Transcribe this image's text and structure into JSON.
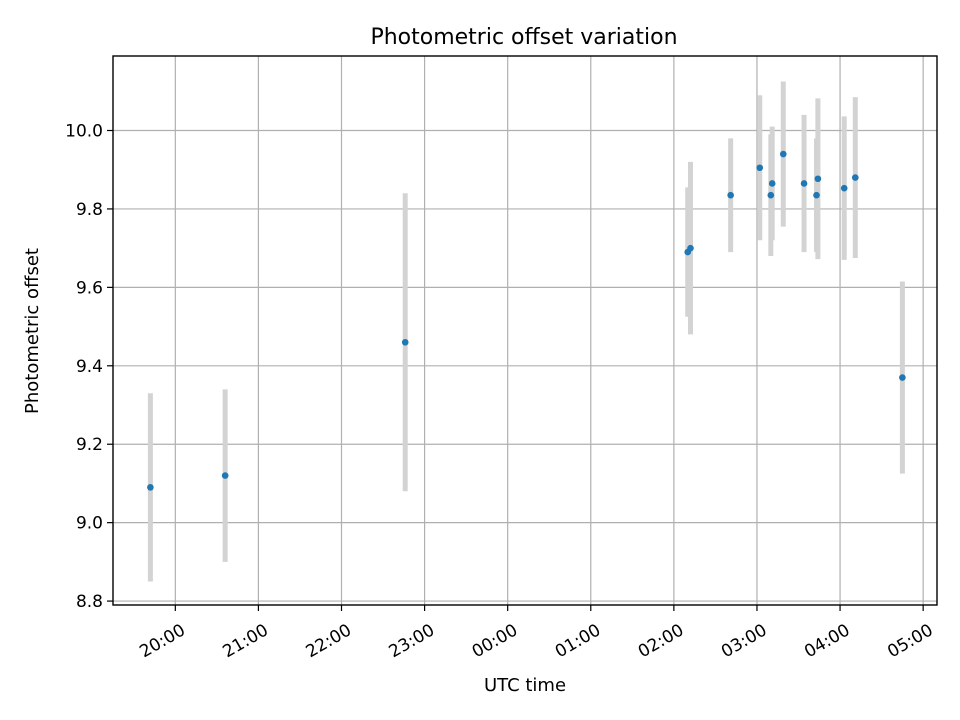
{
  "chart_data": {
    "type": "scatter",
    "title": "Photometric offset variation",
    "xlabel": "UTC time",
    "ylabel": "Photometric offset",
    "ylim": [
      8.79,
      10.19
    ],
    "xlim": [
      "19:15",
      "05:10"
    ],
    "grid": true,
    "x_ticks": [
      "20:00",
      "21:00",
      "22:00",
      "23:00",
      "00:00",
      "01:00",
      "02:00",
      "03:00",
      "04:00",
      "05:00"
    ],
    "y_ticks": [
      8.8,
      9.0,
      9.2,
      9.4,
      9.6,
      9.8,
      10.0
    ],
    "y_tick_labels": [
      "8.8",
      "9.0",
      "9.2",
      "9.4",
      "9.6",
      "9.8",
      "10.0"
    ],
    "point_color": "#1f77b4",
    "errorbar_color": "#d3d3d3",
    "points": [
      {
        "time": "19:42",
        "y": 9.09,
        "err": 0.24
      },
      {
        "time": "20:36",
        "y": 9.12,
        "err": 0.22
      },
      {
        "time": "22:46",
        "y": 9.46,
        "err": 0.38
      },
      {
        "time": "02:10",
        "y": 9.69,
        "err": 0.165
      },
      {
        "time": "02:12",
        "y": 9.7,
        "err": 0.22
      },
      {
        "time": "02:41",
        "y": 9.835,
        "err": 0.145
      },
      {
        "time": "03:02",
        "y": 9.905,
        "err": 0.185
      },
      {
        "time": "03:10",
        "y": 9.835,
        "err": 0.155
      },
      {
        "time": "03:11",
        "y": 9.865,
        "err": 0.145
      },
      {
        "time": "03:19",
        "y": 9.94,
        "err": 0.185
      },
      {
        "time": "03:34",
        "y": 9.865,
        "err": 0.175
      },
      {
        "time": "03:43",
        "y": 9.835,
        "err": 0.145
      },
      {
        "time": "03:44",
        "y": 9.877,
        "err": 0.205
      },
      {
        "time": "04:03",
        "y": 9.853,
        "err": 0.183
      },
      {
        "time": "04:11",
        "y": 9.88,
        "err": 0.205
      },
      {
        "time": "04:45",
        "y": 9.37,
        "err": 0.245
      }
    ]
  }
}
